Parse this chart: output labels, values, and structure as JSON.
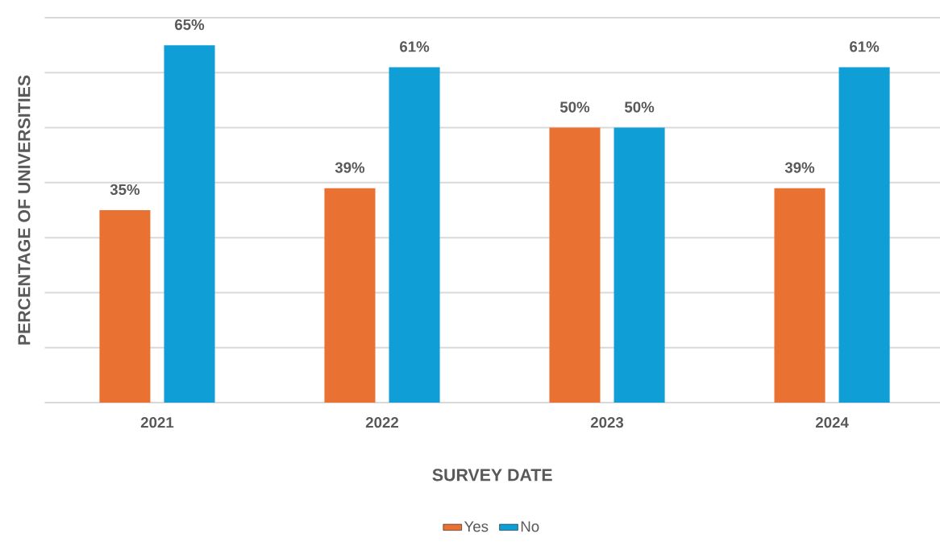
{
  "chart_data": {
    "type": "bar",
    "xlabel": "SURVEY DATE",
    "ylabel": "PERCENTAGE OF UNIVERSITIES",
    "categories": [
      "2021",
      "2022",
      "2023",
      "2024"
    ],
    "series": [
      {
        "name": "Yes",
        "color": "#e97132",
        "values": [
          35,
          39,
          50,
          39
        ],
        "value_labels": [
          "35%",
          "39%",
          "50%",
          "39%"
        ]
      },
      {
        "name": "No",
        "color": "#0f9ed5",
        "values": [
          65,
          61,
          50,
          61
        ],
        "value_labels": [
          "65%",
          "61%",
          "50%",
          "61%"
        ]
      }
    ],
    "ylim": [
      0,
      70
    ],
    "yticks": [
      {
        "value": 0,
        "label": null
      },
      {
        "value": 10,
        "label": null
      },
      {
        "value": 20,
        "label": null
      },
      {
        "value": 30,
        "label": null
      },
      {
        "value": 40,
        "label": null
      },
      {
        "value": 50,
        "label": null
      },
      {
        "value": 60,
        "label": null
      },
      {
        "value": 70,
        "label": null
      }
    ],
    "grid": "y",
    "legend": "bottom"
  }
}
